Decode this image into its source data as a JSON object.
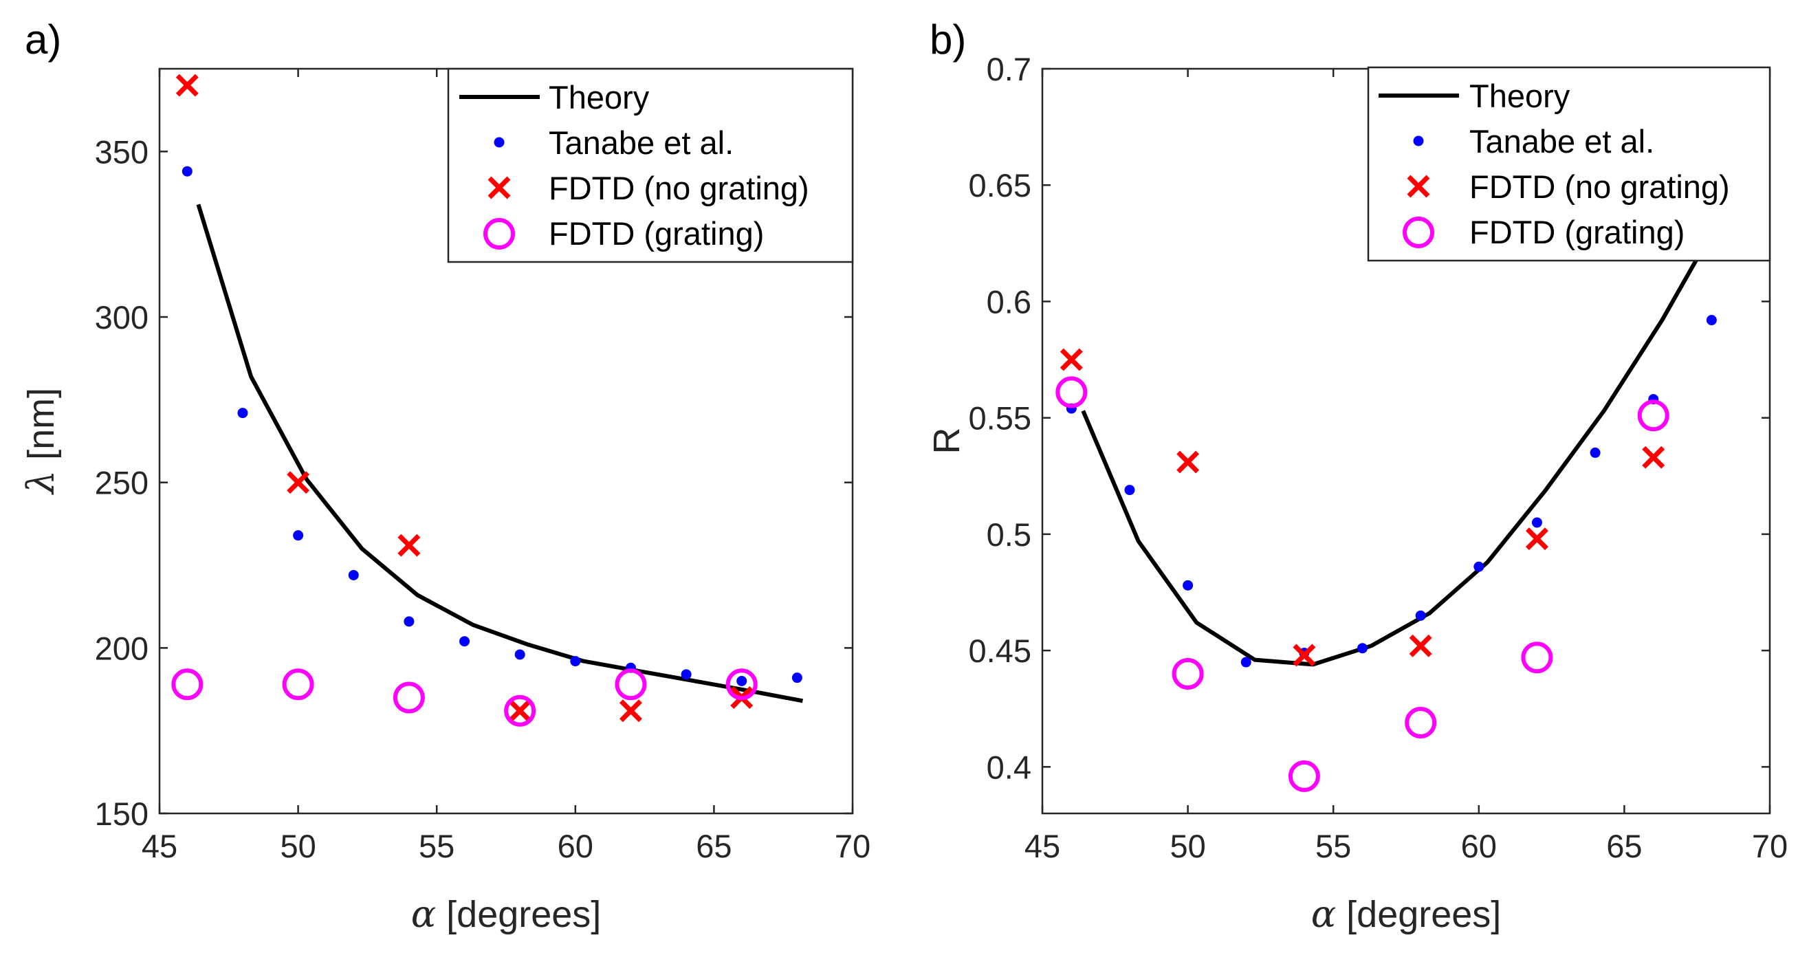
{
  "colors": {
    "theory": "#000000",
    "tanabe": "#0000ff",
    "fdtd_no_grating": "#ff0000",
    "fdtd_grating": "#ff00ff",
    "axis": "#262626"
  },
  "chart_data": [
    {
      "panel_label": "a)",
      "type": "line",
      "xlabel_symbol": "α",
      "xlabel_rest": " [degrees]",
      "ylabel_symbol": "λ",
      "ylabel_rest": " [nm]",
      "xlim": [
        45,
        70
      ],
      "ylim": [
        150,
        375
      ],
      "xticks": [
        45,
        50,
        55,
        60,
        65,
        70
      ],
      "xtick_labels": [
        "45",
        "50",
        "55",
        "60",
        "65",
        "70"
      ],
      "yticks": [
        150,
        200,
        250,
        300,
        350
      ],
      "ytick_labels": [
        "150",
        "200",
        "250",
        "300",
        "350"
      ],
      "legend_position": "top-right",
      "series": [
        {
          "name": "Theory",
          "style": "line",
          "x": [
            46.4,
            48.3,
            50.3,
            52.3,
            54.3,
            56.3,
            58.3,
            60.3,
            62.3,
            64.3,
            66.3,
            68.2
          ],
          "y": [
            334,
            282,
            251,
            230,
            216,
            207,
            201,
            196,
            193,
            190,
            187,
            184
          ]
        },
        {
          "name": "Tanabe et al.",
          "style": "dot",
          "x": [
            46,
            48,
            50,
            52,
            54,
            56,
            58,
            60,
            62,
            64,
            66,
            68
          ],
          "y": [
            344,
            271,
            234,
            222,
            208,
            202,
            198,
            196,
            194,
            192,
            190,
            191
          ]
        },
        {
          "name": "FDTD (no grating)",
          "style": "cross",
          "x": [
            46,
            50,
            54,
            58,
            62,
            66
          ],
          "y": [
            370,
            250,
            231,
            181,
            181,
            185
          ]
        },
        {
          "name": "FDTD (grating)",
          "style": "circle",
          "x": [
            46,
            50,
            54,
            58,
            62,
            66
          ],
          "y": [
            189,
            189,
            185,
            181,
            189,
            189
          ]
        }
      ]
    },
    {
      "panel_label": "b)",
      "type": "line",
      "xlabel_symbol": "α",
      "xlabel_rest": " [degrees]",
      "ylabel_symbol": "",
      "ylabel_rest": "R",
      "xlim": [
        45,
        70
      ],
      "ylim": [
        0.38,
        0.7
      ],
      "xticks": [
        45,
        50,
        55,
        60,
        65,
        70
      ],
      "xtick_labels": [
        "45",
        "50",
        "55",
        "60",
        "65",
        "70"
      ],
      "yticks": [
        0.4,
        0.45,
        0.5,
        0.55,
        0.6,
        0.65,
        0.7
      ],
      "ytick_labels": [
        "0.4",
        "0.45",
        "0.5",
        "0.55",
        "0.6",
        "0.65",
        "0.7"
      ],
      "legend_position": "top-right",
      "series": [
        {
          "name": "Theory",
          "style": "line",
          "x": [
            46.4,
            48.3,
            50.3,
            52.3,
            54.3,
            56.3,
            58.3,
            60.3,
            62.3,
            64.3,
            66.3,
            67.8
          ],
          "y": [
            0.553,
            0.497,
            0.462,
            0.446,
            0.444,
            0.452,
            0.466,
            0.488,
            0.519,
            0.553,
            0.592,
            0.625
          ]
        },
        {
          "name": "Tanabe et al.",
          "style": "dot",
          "x": [
            46,
            48,
            50,
            52,
            54,
            56,
            58,
            60,
            62,
            64,
            66,
            68
          ],
          "y": [
            0.554,
            0.519,
            0.478,
            0.445,
            0.449,
            0.451,
            0.465,
            0.486,
            0.505,
            0.535,
            0.558,
            0.592
          ]
        },
        {
          "name": "FDTD (no grating)",
          "style": "cross",
          "x": [
            46,
            50,
            54,
            58,
            62,
            66
          ],
          "y": [
            0.575,
            0.531,
            0.448,
            0.452,
            0.498,
            0.533
          ]
        },
        {
          "name": "FDTD (grating)",
          "style": "circle",
          "x": [
            46,
            50,
            54,
            58,
            62,
            66
          ],
          "y": [
            0.561,
            0.44,
            0.396,
            0.419,
            0.447,
            0.551
          ]
        }
      ]
    }
  ]
}
